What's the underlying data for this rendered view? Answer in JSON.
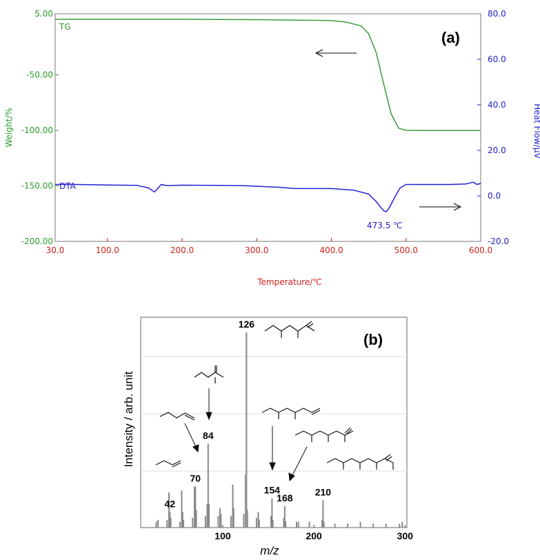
{
  "chart_data": [
    {
      "type": "line",
      "panel_label": "(a)",
      "xlabel": "Temperature/℃",
      "ylabel_left": "Weight/%",
      "ylabel_right": "Heat Flow/μV",
      "xlim": [
        30,
        600
      ],
      "ylim_left": [
        -200,
        5
      ],
      "ylim_right": [
        -20,
        80
      ],
      "x_ticks": [
        "30.0",
        "100.0",
        "200.0",
        "300.0",
        "400.0",
        "500.0",
        "600.0"
      ],
      "y_left_ticks": [
        "5.00",
        "-50.00",
        "-100.00",
        "-150.00",
        "-200.00"
      ],
      "y_right_ticks": [
        "80.0",
        "60.0",
        "40.0",
        "20.0",
        "0.0",
        "-20.0"
      ],
      "colors": {
        "tg": "#3a9a3a",
        "dta": "#2020d8",
        "x_axis": "#d42020",
        "left_axis": "#2a9a2a",
        "right_axis": "#2020c8"
      },
      "series": [
        {
          "name": "TG",
          "axis": "left",
          "x": [
            30,
            100,
            200,
            300,
            400,
            420,
            440,
            450,
            460,
            470,
            480,
            490,
            500,
            520,
            600
          ],
          "y": [
            0,
            0,
            0,
            -0.3,
            -1,
            -2.5,
            -6,
            -13,
            -30,
            -58,
            -85,
            -98,
            -100,
            -100.2,
            -100.2
          ]
        },
        {
          "name": "DTA",
          "axis": "right",
          "x": [
            30,
            60,
            100,
            140,
            155,
            163,
            168,
            172,
            180,
            200,
            240,
            280,
            300,
            330,
            350,
            400,
            430,
            450,
            460,
            466,
            470,
            473.5,
            478,
            485,
            492,
            500,
            520,
            560,
            580,
            590,
            595,
            600
          ],
          "y": [
            5,
            5,
            4.8,
            4.6,
            3.5,
            1.7,
            3.5,
            5,
            4.5,
            4.7,
            4.6,
            4.5,
            4.2,
            3.8,
            3.2,
            3.2,
            2.5,
            0.8,
            -2.5,
            -5,
            -6.5,
            -7,
            -5,
            -0.5,
            3.5,
            5,
            5,
            5,
            5.2,
            6,
            5,
            5.5
          ]
        }
      ],
      "annotations": [
        {
          "text": "473.5 ℃",
          "x": 473.5,
          "y": -7
        },
        {
          "text": "←",
          "meaning": "TG curve refers to left axis"
        },
        {
          "text": "→",
          "meaning": "DTA curve refers to right axis"
        }
      ]
    },
    {
      "type": "bar",
      "panel_label": "(b)",
      "xlabel": "m/z",
      "ylabel": "Intensity / arb. unit",
      "xlim": [
        10,
        302
      ],
      "x_ticks": [
        "100",
        "200",
        "300"
      ],
      "ylim": [
        0,
        100
      ],
      "grid": true,
      "colors": {
        "bars": "#888888",
        "tall_bar": "#999999"
      },
      "peaks": [
        {
          "mz": 27,
          "intensity": 3
        },
        {
          "mz": 29,
          "intensity": 4
        },
        {
          "mz": 39,
          "intensity": 4
        },
        {
          "mz": 41,
          "intensity": 18
        },
        {
          "mz": 42,
          "intensity": 8
        },
        {
          "mz": 43,
          "intensity": 5
        },
        {
          "mz": 53,
          "intensity": 3
        },
        {
          "mz": 55,
          "intensity": 19
        },
        {
          "mz": 56,
          "intensity": 8
        },
        {
          "mz": 57,
          "intensity": 4
        },
        {
          "mz": 67,
          "intensity": 5
        },
        {
          "mz": 69,
          "intensity": 21
        },
        {
          "mz": 70,
          "intensity": 21
        },
        {
          "mz": 71,
          "intensity": 9
        },
        {
          "mz": 81,
          "intensity": 6
        },
        {
          "mz": 83,
          "intensity": 12
        },
        {
          "mz": 84,
          "intensity": 43
        },
        {
          "mz": 85,
          "intensity": 12
        },
        {
          "mz": 95,
          "intensity": 6
        },
        {
          "mz": 97,
          "intensity": 10
        },
        {
          "mz": 98,
          "intensity": 7
        },
        {
          "mz": 109,
          "intensity": 6
        },
        {
          "mz": 111,
          "intensity": 22
        },
        {
          "mz": 112,
          "intensity": 10
        },
        {
          "mz": 123,
          "intensity": 7
        },
        {
          "mz": 125,
          "intensity": 27
        },
        {
          "mz": 126,
          "intensity": 100
        },
        {
          "mz": 127,
          "intensity": 9
        },
        {
          "mz": 137,
          "intensity": 5
        },
        {
          "mz": 139,
          "intensity": 8
        },
        {
          "mz": 140,
          "intensity": 4
        },
        {
          "mz": 153,
          "intensity": 6
        },
        {
          "mz": 154,
          "intensity": 15
        },
        {
          "mz": 155,
          "intensity": 4
        },
        {
          "mz": 167,
          "intensity": 5
        },
        {
          "mz": 168,
          "intensity": 11
        },
        {
          "mz": 169,
          "intensity": 3
        },
        {
          "mz": 181,
          "intensity": 3
        },
        {
          "mz": 183,
          "intensity": 3
        },
        {
          "mz": 195,
          "intensity": 3
        },
        {
          "mz": 209,
          "intensity": 4
        },
        {
          "mz": 210,
          "intensity": 14
        },
        {
          "mz": 211,
          "intensity": 3
        },
        {
          "mz": 223,
          "intensity": 2
        },
        {
          "mz": 237,
          "intensity": 2
        },
        {
          "mz": 251,
          "intensity": 3
        },
        {
          "mz": 265,
          "intensity": 2
        },
        {
          "mz": 279,
          "intensity": 2
        },
        {
          "mz": 294,
          "intensity": 2
        },
        {
          "mz": 297,
          "intensity": 3
        }
      ],
      "labeled_peaks": [
        {
          "text": "42",
          "mz": 42
        },
        {
          "text": "70",
          "mz": 70
        },
        {
          "text": "84",
          "mz": 84
        },
        {
          "text": "126",
          "mz": 126
        },
        {
          "text": "154",
          "mz": 154
        },
        {
          "text": "168",
          "mz": 168
        },
        {
          "text": "210",
          "mz": 210
        }
      ]
    }
  ]
}
